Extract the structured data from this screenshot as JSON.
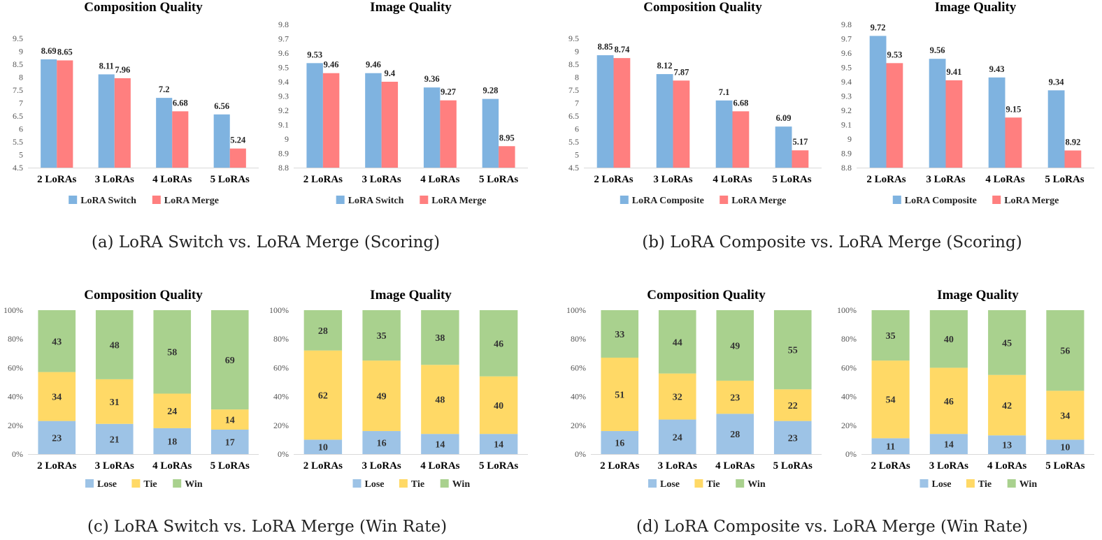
{
  "colors": {
    "switch_composite": "#7fb3e0",
    "merge": "#ff7f7f",
    "lose": "#9dc3e6",
    "tie": "#ffd966",
    "win": "#a9d18e"
  },
  "captions": {
    "a": "(a) LoRA Switch vs. LoRA Merge (Scoring)",
    "b": "(b) LoRA Composite vs. LoRA Merge (Scoring)",
    "c": "(c) LoRA Switch vs. LoRA Merge (Win Rate)",
    "d": "(d) LoRA Composite vs. LoRA Merge (Win Rate)"
  },
  "chart_data": [
    {
      "id": "a-composition",
      "type": "bar",
      "title": "Composition Quality",
      "categories": [
        "2 LoRAs",
        "3 LoRAs",
        "4 LoRAs",
        "5 LoRAs"
      ],
      "ylim": [
        4.5,
        9.5
      ],
      "yticks": [
        "4.5",
        "5",
        "5.5",
        "6",
        "6.5",
        "7",
        "7.5",
        "8",
        "8.5",
        "9",
        "9.5"
      ],
      "series": [
        {
          "name": "LoRA Switch",
          "color_key": "switch_composite",
          "values": [
            8.69,
            8.11,
            7.2,
            6.56
          ],
          "labels": [
            "8.69",
            "8.11",
            "7.2",
            "6.56"
          ]
        },
        {
          "name": "LoRA Merge",
          "color_key": "merge",
          "values": [
            8.65,
            7.96,
            6.68,
            5.24
          ],
          "labels": [
            "8.65",
            "7.96",
            "6.68",
            "5.24"
          ]
        }
      ],
      "legend": "bottom"
    },
    {
      "id": "a-image",
      "type": "bar",
      "title": "Image Quality",
      "categories": [
        "2 LoRAs",
        "3 LoRAs",
        "4 LoRAs",
        "5 LoRAs"
      ],
      "ylim": [
        8.8,
        9.8
      ],
      "yticks": [
        "8.8",
        "8.9",
        "9",
        "9.1",
        "9.2",
        "9.3",
        "9.4",
        "9.5",
        "9.6",
        "9.7",
        "9.8"
      ],
      "series": [
        {
          "name": "LoRA Switch",
          "color_key": "switch_composite",
          "values": [
            9.53,
            9.46,
            9.36,
            9.28
          ],
          "labels": [
            "9.53",
            "9.46",
            "9.36",
            "9.28"
          ]
        },
        {
          "name": "LoRA Merge",
          "color_key": "merge",
          "values": [
            9.46,
            9.4,
            9.27,
            8.95
          ],
          "labels": [
            "9.46",
            "9.4",
            "9.27",
            "8.95"
          ]
        }
      ],
      "legend": "bottom"
    },
    {
      "id": "b-composition",
      "type": "bar",
      "title": "Composition Quality",
      "categories": [
        "2 LoRAs",
        "3 LoRAs",
        "4 LoRAs",
        "5 LoRAs"
      ],
      "ylim": [
        4.5,
        9.5
      ],
      "yticks": [
        "4.5",
        "5",
        "5.5",
        "6",
        "6.5",
        "7",
        "7.5",
        "8",
        "8.5",
        "9",
        "9.5"
      ],
      "series": [
        {
          "name": "LoRA Composite",
          "color_key": "switch_composite",
          "values": [
            8.85,
            8.12,
            7.1,
            6.09
          ],
          "labels": [
            "8.85",
            "8.12",
            "7.1",
            "6.09"
          ]
        },
        {
          "name": "LoRA Merge",
          "color_key": "merge",
          "values": [
            8.74,
            7.87,
            6.68,
            5.17
          ],
          "labels": [
            "8.74",
            "7.87",
            "6.68",
            "5.17"
          ]
        }
      ],
      "legend": "bottom"
    },
    {
      "id": "b-image",
      "type": "bar",
      "title": "Image Quality",
      "categories": [
        "2 LoRAs",
        "3 LoRAs",
        "4 LoRAs",
        "5 LoRAs"
      ],
      "ylim": [
        8.8,
        9.8
      ],
      "yticks": [
        "8.8",
        "8.9",
        "9",
        "9.1",
        "9.2",
        "9.3",
        "9.4",
        "9.5",
        "9.6",
        "9.7",
        "9.8"
      ],
      "series": [
        {
          "name": "LoRA Composite",
          "color_key": "switch_composite",
          "values": [
            9.72,
            9.56,
            9.43,
            9.34
          ],
          "labels": [
            "9.72",
            "9.56",
            "9.43",
            "9.34"
          ]
        },
        {
          "name": "LoRA Merge",
          "color_key": "merge",
          "values": [
            9.53,
            9.41,
            9.15,
            8.92
          ],
          "labels": [
            "9.53",
            "9.41",
            "9.15",
            "8.92"
          ]
        }
      ],
      "legend": "bottom"
    },
    {
      "id": "c-composition",
      "type": "stacked-bar",
      "title": "Composition Quality",
      "categories": [
        "2 LoRAs",
        "3 LoRAs",
        "4 LoRAs",
        "5 LoRAs"
      ],
      "ylim": [
        0,
        100
      ],
      "yticks": [
        "0%",
        "20%",
        "40%",
        "60%",
        "80%",
        "100%"
      ],
      "series": [
        {
          "name": "Lose",
          "color_key": "lose",
          "values": [
            23,
            21,
            18,
            17
          ],
          "labels": [
            "23",
            "21",
            "18",
            "17"
          ]
        },
        {
          "name": "Tie",
          "color_key": "tie",
          "values": [
            34,
            31,
            24,
            14
          ],
          "labels": [
            "34",
            "31",
            "24",
            "14"
          ]
        },
        {
          "name": "Win",
          "color_key": "win",
          "values": [
            43,
            48,
            58,
            69
          ],
          "labels": [
            "43",
            "48",
            "58",
            "69"
          ]
        }
      ],
      "legend": "bottom"
    },
    {
      "id": "c-image",
      "type": "stacked-bar",
      "title": "Image Quality",
      "categories": [
        "2 LoRAs",
        "3 LoRAs",
        "4 LoRAs",
        "5 LoRAs"
      ],
      "ylim": [
        0,
        100
      ],
      "yticks": [
        "0%",
        "20%",
        "40%",
        "60%",
        "80%",
        "100%"
      ],
      "series": [
        {
          "name": "Lose",
          "color_key": "lose",
          "values": [
            10,
            16,
            14,
            14
          ],
          "labels": [
            "10",
            "16",
            "14",
            "14"
          ]
        },
        {
          "name": "Tie",
          "color_key": "tie",
          "values": [
            62,
            49,
            48,
            40
          ],
          "labels": [
            "62",
            "49",
            "48",
            "40"
          ]
        },
        {
          "name": "Win",
          "color_key": "win",
          "values": [
            28,
            35,
            38,
            46
          ],
          "labels": [
            "28",
            "35",
            "38",
            "46"
          ]
        }
      ],
      "legend": "bottom"
    },
    {
      "id": "d-composition",
      "type": "stacked-bar",
      "title": "Composition Quality",
      "categories": [
        "2 LoRAs",
        "3 LoRAs",
        "4 LoRAs",
        "5 LoRAs"
      ],
      "ylim": [
        0,
        100
      ],
      "yticks": [
        "0%",
        "20%",
        "40%",
        "60%",
        "80%",
        "100%"
      ],
      "series": [
        {
          "name": "Lose",
          "color_key": "lose",
          "values": [
            16,
            24,
            28,
            23
          ],
          "labels": [
            "16",
            "24",
            "28",
            "23"
          ]
        },
        {
          "name": "Tie",
          "color_key": "tie",
          "values": [
            51,
            32,
            23,
            22
          ],
          "labels": [
            "51",
            "32",
            "23",
            "22"
          ]
        },
        {
          "name": "Win",
          "color_key": "win",
          "values": [
            33,
            44,
            49,
            55
          ],
          "labels": [
            "33",
            "44",
            "49",
            "55"
          ]
        }
      ],
      "legend": "bottom"
    },
    {
      "id": "d-image",
      "type": "stacked-bar",
      "title": "Image Quality",
      "categories": [
        "2 LoRAs",
        "3 LoRAs",
        "4 LoRAs",
        "5 LoRAs"
      ],
      "ylim": [
        0,
        100
      ],
      "yticks": [
        "0%",
        "20%",
        "40%",
        "60%",
        "80%",
        "100%"
      ],
      "series": [
        {
          "name": "Lose",
          "color_key": "lose",
          "values": [
            11,
            14,
            13,
            10
          ],
          "labels": [
            "11",
            "14",
            "13",
            "10"
          ]
        },
        {
          "name": "Tie",
          "color_key": "tie",
          "values": [
            54,
            46,
            42,
            34
          ],
          "labels": [
            "54",
            "46",
            "42",
            "34"
          ]
        },
        {
          "name": "Win",
          "color_key": "win",
          "values": [
            35,
            40,
            45,
            56
          ],
          "labels": [
            "35",
            "40",
            "45",
            "56"
          ]
        }
      ],
      "legend": "bottom"
    }
  ]
}
